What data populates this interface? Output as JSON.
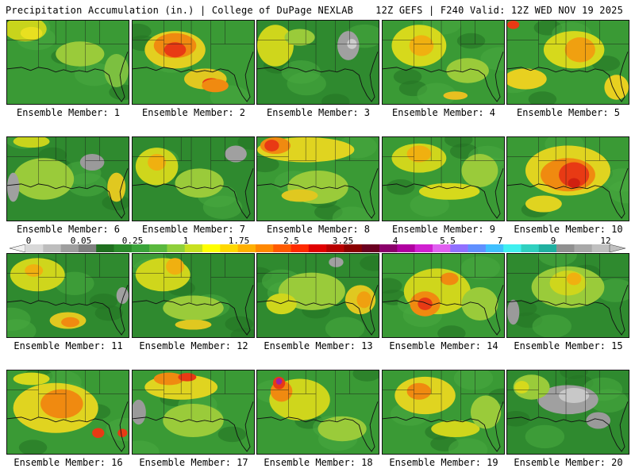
{
  "header": {
    "left": "Precipitation Accumulation (in.) | College of DuPage NEXLAB",
    "right": "12Z GEFS | F240 Valid: 12Z WED NOV 19 2025"
  },
  "caption_prefix": "Ensemble Member: ",
  "members": [
    {
      "label": "Ensemble Member: 1",
      "base": "#3a9a35",
      "blobs": [
        [
          "#c8d41c",
          0.15,
          0.1,
          0.35,
          0.3
        ],
        [
          "#e8e020",
          0.2,
          0.15,
          0.18,
          0.15
        ],
        [
          "#9acb3a",
          0.6,
          0.4,
          0.4,
          0.3
        ],
        [
          "#7cc040",
          0.9,
          0.6,
          0.2,
          0.4
        ]
      ]
    },
    {
      "label": "Ensemble Member: 2",
      "base": "#3a9a35",
      "blobs": [
        [
          "#e3cf20",
          0.35,
          0.35,
          0.5,
          0.45
        ],
        [
          "#f08a10",
          0.35,
          0.3,
          0.35,
          0.3
        ],
        [
          "#e83a14",
          0.35,
          0.35,
          0.18,
          0.18
        ],
        [
          "#e0c820",
          0.6,
          0.7,
          0.35,
          0.25
        ],
        [
          "#e83a14",
          0.65,
          0.75,
          0.15,
          0.12
        ],
        [
          "#f08a10",
          0.68,
          0.78,
          0.22,
          0.16
        ]
      ]
    },
    {
      "label": "Ensemble Member: 3",
      "base": "#2f8a2f",
      "blobs": [
        [
          "#cfd61c",
          0.15,
          0.3,
          0.3,
          0.5
        ],
        [
          "#9acb3a",
          0.35,
          0.2,
          0.25,
          0.2
        ],
        [
          "#a0a0a0",
          0.75,
          0.3,
          0.18,
          0.35
        ],
        [
          "#cccccc",
          0.78,
          0.28,
          0.08,
          0.12
        ]
      ]
    },
    {
      "label": "Ensemble Member: 4",
      "base": "#3a9a35",
      "blobs": [
        [
          "#d6d91c",
          0.3,
          0.3,
          0.45,
          0.5
        ],
        [
          "#f0b010",
          0.32,
          0.3,
          0.2,
          0.25
        ],
        [
          "#9acb3a",
          0.7,
          0.6,
          0.35,
          0.3
        ],
        [
          "#e8c020",
          0.6,
          0.9,
          0.2,
          0.1
        ]
      ]
    },
    {
      "label": "Ensemble Member: 5",
      "base": "#3a9a35",
      "blobs": [
        [
          "#d6d91c",
          0.55,
          0.35,
          0.5,
          0.45
        ],
        [
          "#f0a010",
          0.6,
          0.35,
          0.25,
          0.3
        ],
        [
          "#e8d020",
          0.15,
          0.7,
          0.35,
          0.25
        ],
        [
          "#e83a14",
          0.05,
          0.05,
          0.1,
          0.1
        ],
        [
          "#e8d020",
          0.9,
          0.8,
          0.2,
          0.3
        ]
      ]
    },
    {
      "label": "Ensemble Member: 6",
      "base": "#2f8a2f",
      "blobs": [
        [
          "#9acb3a",
          0.3,
          0.5,
          0.5,
          0.5
        ],
        [
          "#c8d41c",
          0.2,
          0.05,
          0.3,
          0.15
        ],
        [
          "#a0a0a0",
          0.05,
          0.6,
          0.1,
          0.35
        ],
        [
          "#e0c820",
          0.9,
          0.6,
          0.15,
          0.35
        ],
        [
          "#9a9a9a",
          0.7,
          0.3,
          0.2,
          0.2
        ]
      ]
    },
    {
      "label": "Ensemble Member: 7",
      "base": "#2f8a2f",
      "blobs": [
        [
          "#cfd61c",
          0.2,
          0.35,
          0.35,
          0.45
        ],
        [
          "#f0b010",
          0.2,
          0.3,
          0.15,
          0.2
        ],
        [
          "#9acb3a",
          0.55,
          0.55,
          0.4,
          0.35
        ],
        [
          "#a0a0a0",
          0.85,
          0.2,
          0.18,
          0.2
        ]
      ]
    },
    {
      "label": "Ensemble Member: 8",
      "base": "#3a9a35",
      "blobs": [
        [
          "#e0d420",
          0.4,
          0.15,
          0.8,
          0.3
        ],
        [
          "#f08a10",
          0.15,
          0.1,
          0.25,
          0.2
        ],
        [
          "#e83a14",
          0.12,
          0.1,
          0.12,
          0.14
        ],
        [
          "#9acb3a",
          0.5,
          0.6,
          0.5,
          0.4
        ],
        [
          "#e0c820",
          0.35,
          0.7,
          0.3,
          0.15
        ]
      ]
    },
    {
      "label": "Ensemble Member: 9",
      "base": "#3a9a35",
      "blobs": [
        [
          "#cfd61c",
          0.3,
          0.25,
          0.45,
          0.35
        ],
        [
          "#f0b010",
          0.3,
          0.2,
          0.2,
          0.2
        ],
        [
          "#d6d91c",
          0.55,
          0.65,
          0.5,
          0.2
        ],
        [
          "#9acb3a",
          0.8,
          0.4,
          0.3,
          0.4
        ]
      ]
    },
    {
      "label": "Ensemble Member: 10",
      "base": "#3a9a35",
      "blobs": [
        [
          "#e0d420",
          0.5,
          0.4,
          0.7,
          0.6
        ],
        [
          "#f08a10",
          0.5,
          0.45,
          0.45,
          0.4
        ],
        [
          "#e83a14",
          0.55,
          0.45,
          0.25,
          0.3
        ],
        [
          "#d02010",
          0.55,
          0.55,
          0.1,
          0.12
        ],
        [
          "#e0d420",
          0.3,
          0.8,
          0.3,
          0.2
        ]
      ]
    },
    {
      "label": "Ensemble Member: 11",
      "base": "#2f8a2f",
      "blobs": [
        [
          "#cfd61c",
          0.25,
          0.25,
          0.45,
          0.4
        ],
        [
          "#f0b010",
          0.22,
          0.2,
          0.15,
          0.15
        ],
        [
          "#e0c820",
          0.5,
          0.8,
          0.3,
          0.2
        ],
        [
          "#f08a10",
          0.52,
          0.82,
          0.15,
          0.12
        ],
        [
          "#a0a0a0",
          0.95,
          0.5,
          0.1,
          0.2
        ]
      ]
    },
    {
      "label": "Ensemble Member: 12",
      "base": "#2f8a2f",
      "blobs": [
        [
          "#cfd61c",
          0.25,
          0.25,
          0.45,
          0.4
        ],
        [
          "#f0b010",
          0.35,
          0.15,
          0.15,
          0.2
        ],
        [
          "#9acb3a",
          0.5,
          0.65,
          0.5,
          0.3
        ],
        [
          "#e0c820",
          0.5,
          0.85,
          0.3,
          0.12
        ]
      ]
    },
    {
      "label": "Ensemble Member: 13",
      "base": "#2f8a2f",
      "blobs": [
        [
          "#9acb3a",
          0.45,
          0.45,
          0.55,
          0.45
        ],
        [
          "#cfd61c",
          0.2,
          0.6,
          0.25,
          0.25
        ],
        [
          "#e0c820",
          0.85,
          0.55,
          0.25,
          0.35
        ],
        [
          "#f0a010",
          0.88,
          0.55,
          0.12,
          0.2
        ],
        [
          "#a0a0a0",
          0.65,
          0.1,
          0.12,
          0.12
        ]
      ]
    },
    {
      "label": "Ensemble Member: 14",
      "base": "#3a9a35",
      "blobs": [
        [
          "#cfd61c",
          0.45,
          0.45,
          0.55,
          0.55
        ],
        [
          "#f08a10",
          0.35,
          0.6,
          0.25,
          0.3
        ],
        [
          "#e83a14",
          0.35,
          0.6,
          0.12,
          0.15
        ],
        [
          "#f08a10",
          0.55,
          0.3,
          0.15,
          0.15
        ],
        [
          "#9acb3a",
          0.8,
          0.6,
          0.3,
          0.4
        ]
      ]
    },
    {
      "label": "Ensemble Member: 15",
      "base": "#2f8a2f",
      "blobs": [
        [
          "#9acb3a",
          0.5,
          0.4,
          0.6,
          0.5
        ],
        [
          "#cfd61c",
          0.5,
          0.35,
          0.3,
          0.3
        ],
        [
          "#f0b010",
          0.55,
          0.3,
          0.12,
          0.15
        ],
        [
          "#9a9a9a",
          0.05,
          0.7,
          0.1,
          0.3
        ]
      ]
    },
    {
      "label": "Ensemble Member: 16",
      "base": "#3a9a35",
      "blobs": [
        [
          "#e0d420",
          0.4,
          0.45,
          0.7,
          0.6
        ],
        [
          "#f08a10",
          0.45,
          0.4,
          0.35,
          0.35
        ],
        [
          "#e83a14",
          0.75,
          0.75,
          0.1,
          0.12
        ],
        [
          "#e83a14",
          0.95,
          0.75,
          0.08,
          0.1
        ],
        [
          "#d6d91c",
          0.2,
          0.1,
          0.3,
          0.15
        ]
      ]
    },
    {
      "label": "Ensemble Member: 17",
      "base": "#3a9a35",
      "blobs": [
        [
          "#e0d420",
          0.4,
          0.2,
          0.6,
          0.3
        ],
        [
          "#f08a10",
          0.3,
          0.1,
          0.25,
          0.15
        ],
        [
          "#e83a14",
          0.45,
          0.08,
          0.15,
          0.1
        ],
        [
          "#9acb3a",
          0.5,
          0.6,
          0.5,
          0.4
        ],
        [
          "#9a9a9a",
          0.05,
          0.5,
          0.12,
          0.3
        ]
      ]
    },
    {
      "label": "Ensemble Member: 18",
      "base": "#3a9a35",
      "blobs": [
        [
          "#cfd61c",
          0.35,
          0.35,
          0.5,
          0.5
        ],
        [
          "#f08a10",
          0.2,
          0.25,
          0.18,
          0.25
        ],
        [
          "#e83a14",
          0.18,
          0.15,
          0.1,
          0.15
        ],
        [
          "#a020a0",
          0.18,
          0.13,
          0.05,
          0.08
        ],
        [
          "#9acb3a",
          0.7,
          0.7,
          0.4,
          0.3
        ]
      ]
    },
    {
      "label": "Ensemble Member: 19",
      "base": "#3a9a35",
      "blobs": [
        [
          "#e0d420",
          0.35,
          0.3,
          0.5,
          0.45
        ],
        [
          "#f08a10",
          0.3,
          0.25,
          0.2,
          0.2
        ],
        [
          "#cfd61c",
          0.6,
          0.7,
          0.4,
          0.2
        ],
        [
          "#9acb3a",
          0.85,
          0.5,
          0.25,
          0.4
        ]
      ]
    },
    {
      "label": "Ensemble Member: 20",
      "base": "#2f8a2f",
      "blobs": [
        [
          "#a0a0a0",
          0.5,
          0.35,
          0.5,
          0.35
        ],
        [
          "#c8c8c8",
          0.55,
          0.3,
          0.25,
          0.18
        ],
        [
          "#9acb3a",
          0.2,
          0.2,
          0.3,
          0.3
        ],
        [
          "#d6d91c",
          0.12,
          0.2,
          0.12,
          0.15
        ],
        [
          "#9a9a9a",
          0.75,
          0.6,
          0.2,
          0.2
        ]
      ]
    }
  ],
  "colorbar": {
    "tick_labels": [
      "0",
      "0.05",
      "0.25",
      "1",
      "1.75",
      "2.5",
      "3.25",
      "4",
      "5.5",
      "7",
      "9",
      "12"
    ],
    "colors": [
      "#d9d9d9",
      "#bdbdbd",
      "#9e9e9e",
      "#808080",
      "#1f6f1f",
      "#2a8a2a",
      "#3aa33a",
      "#59b83e",
      "#8fcf3a",
      "#c8e020",
      "#ffff00",
      "#ffd800",
      "#ffb000",
      "#ff8800",
      "#ff5a00",
      "#ff2a00",
      "#e00000",
      "#b80000",
      "#8a0000",
      "#6a0020",
      "#8a006a",
      "#b000a0",
      "#d020d0",
      "#e060f0",
      "#9070ff",
      "#6090ff",
      "#40c0ff",
      "#40f0f0",
      "#30d0c0",
      "#20b0a0",
      "#909090",
      "#a8a8a8",
      "#c0c0c0"
    ]
  }
}
